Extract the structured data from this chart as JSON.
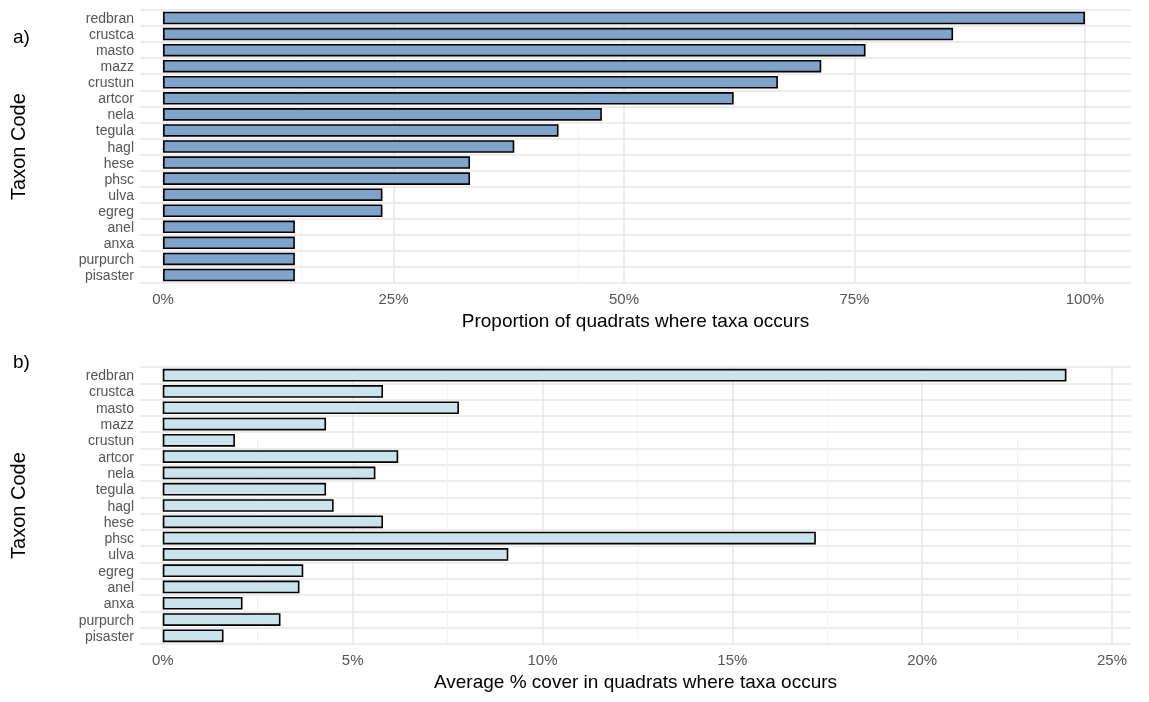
{
  "chart_data": [
    {
      "type": "bar",
      "orientation": "horizontal",
      "title": "a)",
      "xlabel": "Proportion of quadrats where taxa occurs",
      "ylabel": "Taxon Code",
      "categories": [
        "redbran",
        "crustca",
        "masto",
        "mazz",
        "crustun",
        "artcor",
        "nela",
        "tegula",
        "hagl",
        "hese",
        "phsc",
        "ulva",
        "egreg",
        "anel",
        "anxa",
        "purpurch",
        "pisaster"
      ],
      "values": [
        100,
        85.7,
        76.2,
        71.4,
        66.7,
        61.9,
        47.6,
        42.9,
        38.1,
        33.3,
        33.3,
        23.8,
        23.8,
        14.3,
        14.3,
        14.3,
        14.3
      ],
      "color": "#7fa3c9",
      "xlim": [
        -2.5,
        105
      ],
      "xticks": [
        {
          "value": 0,
          "label": "0%"
        },
        {
          "value": 25,
          "label": "25%"
        },
        {
          "value": 50,
          "label": "50%"
        },
        {
          "value": 75,
          "label": "75%"
        },
        {
          "value": 100,
          "label": "100%"
        }
      ],
      "grid": true
    },
    {
      "type": "bar",
      "orientation": "horizontal",
      "title": "b)",
      "xlabel": "Average % cover in quadrats where taxa occurs",
      "ylabel": "Taxon Code",
      "categories": [
        "redbran",
        "crustca",
        "masto",
        "mazz",
        "crustun",
        "artcor",
        "nela",
        "tegula",
        "hagl",
        "hese",
        "phsc",
        "ulva",
        "egreg",
        "anel",
        "anxa",
        "purpurch",
        "pisaster"
      ],
      "values": [
        23.8,
        5.8,
        7.8,
        4.3,
        1.9,
        6.2,
        5.6,
        4.3,
        4.5,
        5.8,
        17.2,
        9.1,
        3.7,
        3.6,
        2.1,
        3.1,
        1.6
      ],
      "color": "#cbe3eb",
      "xlim": [
        -0.6,
        25.5
      ],
      "xticks": [
        {
          "value": 0,
          "label": "0%"
        },
        {
          "value": 5,
          "label": "5%"
        },
        {
          "value": 10,
          "label": "10%"
        },
        {
          "value": 15,
          "label": "15%"
        },
        {
          "value": 20,
          "label": "20%"
        },
        {
          "value": 25,
          "label": "25%"
        }
      ],
      "grid": true
    }
  ]
}
